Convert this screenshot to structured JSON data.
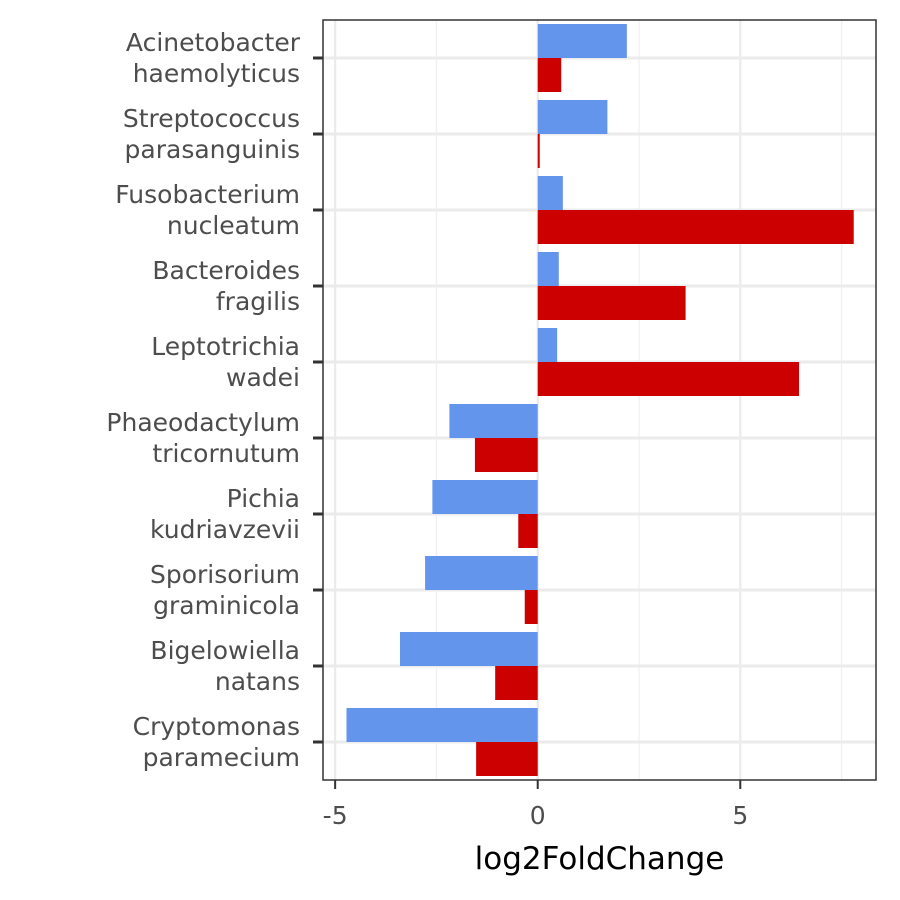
{
  "chart_data": {
    "type": "bar",
    "orientation": "horizontal",
    "title": "",
    "xlabel": "log2FoldChange",
    "ylabel": "",
    "xlim": [
      -5.3,
      8.35
    ],
    "x_ticks": [
      -5,
      0,
      5
    ],
    "grid": true,
    "legend": "none",
    "categories": [
      [
        "Acinetobacter",
        "haemolyticus"
      ],
      [
        "Streptococcus",
        "parasanguinis"
      ],
      [
        "Fusobacterium",
        "nucleatum"
      ],
      [
        "Bacteroides",
        "fragilis"
      ],
      [
        "Leptotrichia",
        "wadei"
      ],
      [
        "Phaeodactylum",
        "tricornutum"
      ],
      [
        "Pichia",
        "kudriavzevii"
      ],
      [
        "Sporisorium",
        "graminicola"
      ],
      [
        "Bigelowiella",
        "natans"
      ],
      [
        "Cryptomonas",
        "paramecium"
      ]
    ],
    "series": [
      {
        "color": "#6495ED",
        "values": [
          2.2,
          1.72,
          0.62,
          0.52,
          0.48,
          -2.18,
          -2.6,
          -2.78,
          -3.4,
          -4.72
        ]
      },
      {
        "color": "#CD0000",
        "values": [
          0.58,
          0.05,
          7.8,
          3.65,
          6.45,
          -1.55,
          -0.48,
          -0.32,
          -1.05,
          -1.52
        ]
      }
    ]
  }
}
